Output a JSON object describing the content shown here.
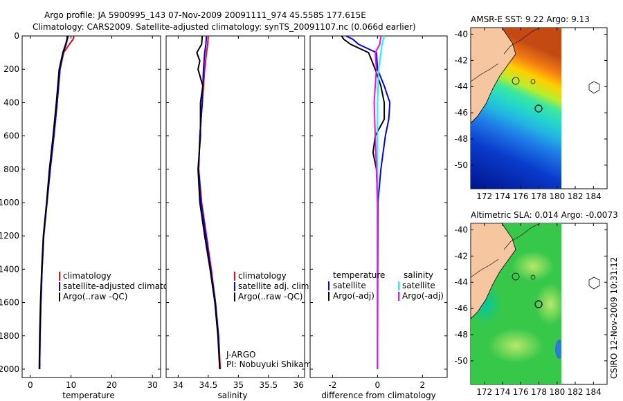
{
  "header": {
    "line1": "Argo profile: JA 5900995_143 07-Nov-2009 20091111_974 45.558S 177.615E",
    "line2": "Climatology: CARS2009. Satellite-adjusted climatology: synTS_20091107.nc (0.066d earlier)"
  },
  "credit": "CSIRO 12-Nov-2009 10:31:12",
  "colors": {
    "red": "#ff0000",
    "blue": "#0000ff",
    "black": "#000000",
    "cyan": "#00ffff",
    "magenta": "#ff00ff",
    "land": "#f5c6a0"
  },
  "chart_data": [
    {
      "type": "line",
      "id": "temperature",
      "xlabel": "temperature",
      "ylabel": "",
      "xlim": [
        -2,
        32
      ],
      "ylim": [
        2050,
        0
      ],
      "xticks": [
        0,
        10,
        20,
        30
      ],
      "yticks": [
        0,
        200,
        400,
        600,
        800,
        1000,
        1200,
        1400,
        1600,
        1800,
        2000
      ],
      "series": [
        {
          "name": "climatology",
          "color": "#ff0000",
          "points": [
            [
              10.7,
              0
            ],
            [
              10.5,
              20
            ],
            [
              9.6,
              50
            ],
            [
              8.2,
              100
            ],
            [
              7.3,
              200
            ],
            [
              6.6,
              400
            ],
            [
              5.8,
              600
            ],
            [
              4.9,
              800
            ],
            [
              4.1,
              1000
            ],
            [
              3.3,
              1200
            ],
            [
              2.9,
              1400
            ],
            [
              2.6,
              1600
            ],
            [
              2.4,
              1800
            ],
            [
              2.3,
              2000
            ]
          ]
        },
        {
          "name": "satellite-adjusted climatology",
          "color": "#0000ff",
          "points": [
            [
              9.3,
              0
            ],
            [
              9.1,
              20
            ],
            [
              8.8,
              50
            ],
            [
              8.1,
              100
            ],
            [
              7.3,
              200
            ],
            [
              6.6,
              400
            ],
            [
              5.8,
              600
            ],
            [
              4.9,
              800
            ],
            [
              4.1,
              1000
            ],
            [
              3.3,
              1200
            ],
            [
              2.9,
              1400
            ],
            [
              2.6,
              1600
            ],
            [
              2.4,
              1800
            ],
            [
              2.3,
              2000
            ]
          ]
        },
        {
          "name": "Argo(..raw -QC)",
          "color": "#000000",
          "points": [
            [
              9.1,
              0
            ],
            [
              9.0,
              20
            ],
            [
              8.7,
              50
            ],
            [
              8.0,
              100
            ],
            [
              7.1,
              200
            ],
            [
              6.4,
              400
            ],
            [
              5.6,
              600
            ],
            [
              4.7,
              800
            ],
            [
              4.0,
              1000
            ],
            [
              3.2,
              1200
            ],
            [
              2.8,
              1400
            ],
            [
              2.5,
              1600
            ],
            [
              2.3,
              1800
            ],
            [
              2.2,
              2000
            ]
          ]
        }
      ],
      "legend": {
        "entries": [
          "climatology",
          "satellite-adjusted climatology",
          "Argo(..raw -QC)"
        ],
        "placement": "bottom-left"
      }
    },
    {
      "type": "line",
      "id": "salinity",
      "xlabel": "salinity",
      "ylabel": "",
      "xlim": [
        33.8,
        36.1
      ],
      "ylim": [
        2050,
        0
      ],
      "xticks": [
        34,
        34.5,
        35,
        35.5,
        36
      ],
      "xticklabels": [
        "34",
        "34.5",
        "35",
        "35.5",
        "36"
      ],
      "series": [
        {
          "name": "climatology",
          "color": "#ff0000",
          "points": [
            [
              34.5,
              0
            ],
            [
              34.49,
              50
            ],
            [
              34.47,
              100
            ],
            [
              34.44,
              200
            ],
            [
              34.4,
              400
            ],
            [
              34.36,
              600
            ],
            [
              34.34,
              800
            ],
            [
              34.39,
              1000
            ],
            [
              34.47,
              1200
            ],
            [
              34.55,
              1400
            ],
            [
              34.62,
              1600
            ],
            [
              34.67,
              1800
            ],
            [
              34.7,
              2000
            ]
          ]
        },
        {
          "name": "satellite adj. clim.",
          "color": "#0000ff",
          "points": [
            [
              34.47,
              0
            ],
            [
              34.46,
              50
            ],
            [
              34.44,
              100
            ],
            [
              34.42,
              200
            ],
            [
              34.4,
              400
            ],
            [
              34.36,
              600
            ],
            [
              34.34,
              800
            ],
            [
              34.38,
              1000
            ],
            [
              34.46,
              1200
            ],
            [
              34.54,
              1400
            ],
            [
              34.62,
              1600
            ],
            [
              34.67,
              1800
            ],
            [
              34.69,
              2000
            ]
          ]
        },
        {
          "name": "Argo(..raw -QC)",
          "color": "#000000",
          "points": [
            [
              34.4,
              0
            ],
            [
              34.39,
              50
            ],
            [
              34.31,
              100
            ],
            [
              34.36,
              150
            ],
            [
              34.33,
              200
            ],
            [
              34.41,
              300
            ],
            [
              34.37,
              400
            ],
            [
              34.37,
              600
            ],
            [
              34.33,
              800
            ],
            [
              34.36,
              1000
            ],
            [
              34.44,
              1200
            ],
            [
              34.53,
              1400
            ],
            [
              34.61,
              1600
            ],
            [
              34.66,
              1800
            ],
            [
              34.69,
              2000
            ]
          ]
        }
      ],
      "legend": {
        "entries": [
          "climatology",
          "satellite adj. clim.",
          "Argo(..raw -QC)"
        ],
        "placement": "bottom-center"
      },
      "annotation": {
        "line1": "J-ARGO",
        "line2": "PI: Nobuyuki Shikama"
      }
    },
    {
      "type": "line",
      "id": "difference",
      "xlabel": "difference from climatology",
      "ylabel": "",
      "xlim": [
        -3,
        3.1
      ],
      "ylim": [
        2050,
        0
      ],
      "xticks": [
        -2,
        0,
        2
      ],
      "series": [
        {
          "name": "temperature satellite",
          "color": "#0000ff",
          "points": [
            [
              -1.4,
              0
            ],
            [
              -1.1,
              20
            ],
            [
              -0.85,
              50
            ],
            [
              -0.05,
              100
            ],
            [
              0,
              200
            ],
            [
              0.3,
              300
            ],
            [
              0.55,
              400
            ],
            [
              0.5,
              500
            ],
            [
              0.35,
              600
            ],
            [
              0.15,
              800
            ],
            [
              0.02,
              1000
            ],
            [
              0,
              2000
            ]
          ]
        },
        {
          "name": "temperature Argo(-adj)",
          "color": "#000000",
          "points": [
            [
              -1.6,
              0
            ],
            [
              -1.5,
              20
            ],
            [
              -1.2,
              50
            ],
            [
              -0.4,
              100
            ],
            [
              -0.1,
              200
            ],
            [
              0.15,
              300
            ],
            [
              0.3,
              400
            ],
            [
              0.3,
              500
            ],
            [
              -0.1,
              600
            ],
            [
              -0.2,
              700
            ],
            [
              -0.05,
              800
            ],
            [
              0,
              1000
            ],
            [
              0,
              2000
            ]
          ]
        },
        {
          "name": "salinity satellite",
          "color": "#00ffff",
          "points": [
            [
              0.3,
              0
            ],
            [
              0.25,
              20
            ],
            [
              0.2,
              50
            ],
            [
              0.15,
              100
            ],
            [
              0.05,
              200
            ],
            [
              0,
              400
            ],
            [
              0,
              2000
            ]
          ]
        },
        {
          "name": "salinity Argo(-adj)",
          "color": "#ff00ff",
          "points": [
            [
              0.15,
              0
            ],
            [
              0.1,
              50
            ],
            [
              -0.1,
              100
            ],
            [
              -0.05,
              200
            ],
            [
              -0.1,
              300
            ],
            [
              -0.15,
              400
            ],
            [
              -0.1,
              600
            ],
            [
              -0.05,
              800
            ],
            [
              0,
              1000
            ],
            [
              0,
              2000
            ]
          ]
        }
      ],
      "legend": {
        "headers": [
          "temperature",
          "salinity"
        ],
        "entries": [
          "satellite",
          "Argo(-adj)",
          "satellite",
          "Argo(-adj)"
        ],
        "placement": "center"
      }
    },
    {
      "type": "heatmap",
      "id": "sst-map",
      "title": "AMSR-E SST: 9.22  Argo: 9.13",
      "xlim": [
        170.5,
        185.5
      ],
      "ylim": [
        -51.8,
        -39.5
      ],
      "xticks": [
        172,
        174,
        176,
        178,
        180,
        182,
        184
      ],
      "yticks": [
        -40,
        -42,
        -44,
        -46,
        -48,
        -50
      ]
    },
    {
      "type": "heatmap",
      "id": "sla-map",
      "title": "Altimetric SLA: 0.014  Argo: -0.0073",
      "xlim": [
        170.5,
        185.5
      ],
      "ylim": [
        -51.8,
        -39.5
      ],
      "xticks": [
        172,
        174,
        176,
        178,
        180,
        182,
        184
      ],
      "yticks": [
        -40,
        -42,
        -44,
        -46,
        -48,
        -50
      ]
    }
  ]
}
